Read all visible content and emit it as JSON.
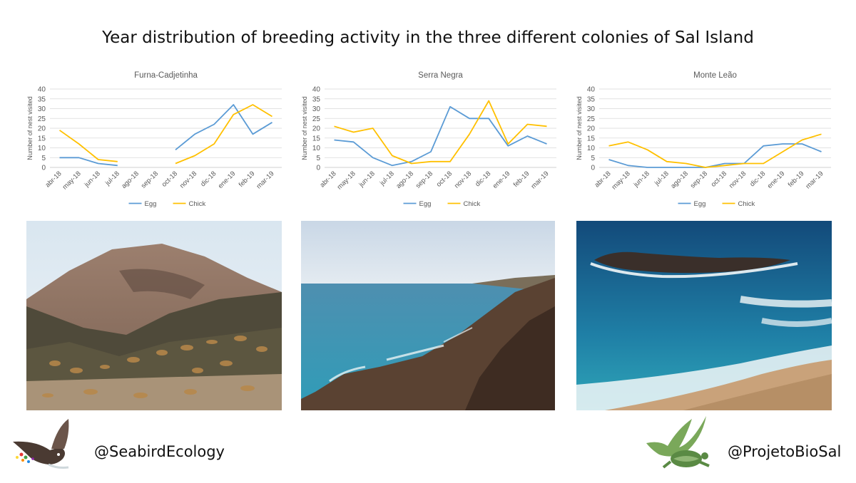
{
  "title": "Year distribution of breeding activity in the three different colonies of Sal Island",
  "footer": {
    "left_handle": "@SeabirdEcology",
    "right_handle": "@ProjetoBioSal"
  },
  "colors": {
    "egg": "#5B9BD5",
    "chick": "#FFC000",
    "grid": "#D9D9D9",
    "axis_text": "#595959"
  },
  "photos": [
    {
      "subject": "mountain-landscape"
    },
    {
      "subject": "coastal-cliffs"
    },
    {
      "subject": "rocky-islet-sea"
    }
  ],
  "chart_data": [
    {
      "type": "line",
      "title": "Furna-Cadjetinha",
      "ylabel": "Number of nest visited",
      "xlabel": "",
      "ylim": [
        0,
        40
      ],
      "yticks": [
        0,
        5,
        10,
        15,
        20,
        25,
        30,
        35,
        40
      ],
      "grid": true,
      "legend": "bottom",
      "categories": [
        "abr-18",
        "may-18",
        "jun-18",
        "jul-18",
        "ago-18",
        "sep-18",
        "oct-18",
        "nov-18",
        "dic-18",
        "ene-19",
        "feb-19",
        "mar-19"
      ],
      "series": [
        {
          "name": "Egg",
          "color": "#5B9BD5",
          "values": [
            5,
            5,
            2,
            1,
            null,
            null,
            9,
            17,
            22,
            32,
            17,
            23
          ]
        },
        {
          "name": "Chick",
          "color": "#FFC000",
          "values": [
            19,
            12,
            4,
            3,
            null,
            null,
            2,
            6,
            12,
            27,
            32,
            26
          ]
        }
      ]
    },
    {
      "type": "line",
      "title": "Serra Negra",
      "ylabel": "Number of nest visited",
      "xlabel": "",
      "ylim": [
        0,
        40
      ],
      "yticks": [
        0,
        5,
        10,
        15,
        20,
        25,
        30,
        35,
        40
      ],
      "grid": true,
      "legend": "bottom",
      "categories": [
        "abr-18",
        "may-18",
        "jun-18",
        "jul-18",
        "ago-18",
        "sep-18",
        "oct-18",
        "nov-18",
        "dic-18",
        "ene-19",
        "feb-19",
        "mar-19"
      ],
      "series": [
        {
          "name": "Egg",
          "color": "#5B9BD5",
          "values": [
            14,
            13,
            5,
            1,
            3,
            8,
            31,
            25,
            25,
            11,
            16,
            12
          ]
        },
        {
          "name": "Chick",
          "color": "#FFC000",
          "values": [
            21,
            18,
            20,
            6,
            2,
            3,
            3,
            17,
            34,
            12,
            22,
            21
          ]
        }
      ]
    },
    {
      "type": "line",
      "title": "Monte Leão",
      "ylabel": "Number of nest visited",
      "xlabel": "",
      "ylim": [
        0,
        40
      ],
      "yticks": [
        0,
        5,
        10,
        15,
        20,
        25,
        30,
        35,
        40
      ],
      "grid": true,
      "legend": "bottom",
      "categories": [
        "abr-18",
        "may-18",
        "jun-18",
        "jul-18",
        "ago-18",
        "sep-18",
        "oct-18",
        "nov-18",
        "dic-18",
        "ene-19",
        "feb-19",
        "mar-19"
      ],
      "series": [
        {
          "name": "Egg",
          "color": "#5B9BD5",
          "values": [
            4,
            1,
            0,
            0,
            0,
            0,
            2,
            2,
            11,
            12,
            12,
            8
          ]
        },
        {
          "name": "Chick",
          "color": "#FFC000",
          "values": [
            11,
            13,
            9,
            3,
            2,
            0,
            1,
            2,
            2,
            8,
            14,
            17
          ]
        }
      ]
    }
  ]
}
